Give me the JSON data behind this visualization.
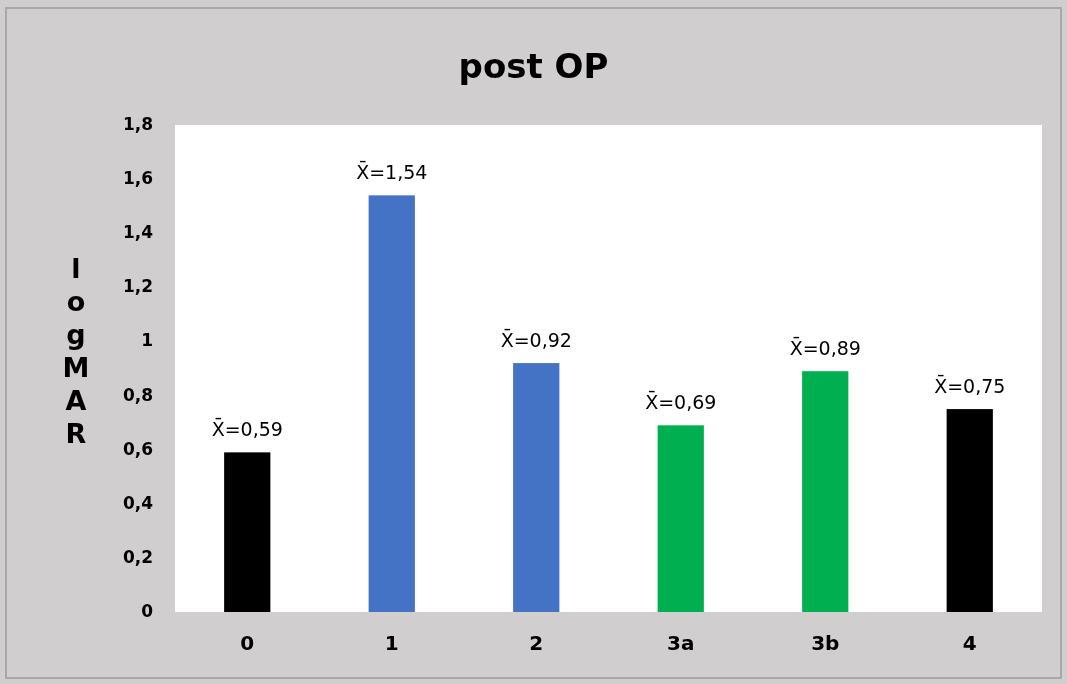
{
  "chart_data": {
    "type": "bar",
    "title": "post OP",
    "ylabel": "logMAR",
    "categories": [
      "0",
      "1",
      "2",
      "3a",
      "3b",
      "4"
    ],
    "values": [
      0.59,
      1.54,
      0.92,
      0.69,
      0.89,
      0.75
    ],
    "colors": [
      "#000000",
      "#4472c4",
      "#4472c4",
      "#00b050",
      "#00b050",
      "#000000"
    ],
    "value_labels": [
      "X̄=0,59",
      "X̄=1,54",
      "X̄=0,92",
      "X̄=0,69",
      "X̄=0,89",
      "X̄=0,75"
    ],
    "ylim": [
      0,
      1.8
    ],
    "yticks": [
      {
        "value": 0,
        "label": "0"
      },
      {
        "value": 0.2,
        "label": "0,2"
      },
      {
        "value": 0.4,
        "label": "0,4"
      },
      {
        "value": 0.6,
        "label": "0,6"
      },
      {
        "value": 0.8,
        "label": "0,8"
      },
      {
        "value": 1,
        "label": "1"
      },
      {
        "value": 1.2,
        "label": "1,2"
      },
      {
        "value": 1.4,
        "label": "1,4"
      },
      {
        "value": 1.6,
        "label": "1,6"
      },
      {
        "value": 1.8,
        "label": "1,8"
      }
    ],
    "grid": false
  }
}
